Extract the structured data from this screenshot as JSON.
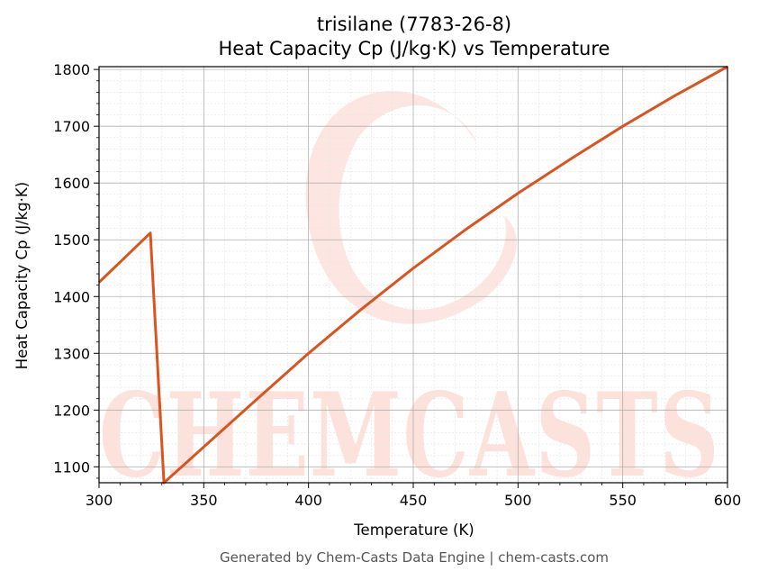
{
  "chart_data": {
    "type": "line",
    "title": "trisilane (7783-26-8)",
    "subtitle": "Heat Capacity Cp (J/kg·K) vs Temperature",
    "xlabel": "Temperature (K)",
    "ylabel": "Heat Capacity Cp (J/kg·K)",
    "xlim": [
      300,
      600
    ],
    "ylim": [
      1072,
      1805
    ],
    "x_ticks": [
      300,
      350,
      400,
      450,
      500,
      550,
      600
    ],
    "y_ticks": [
      1100,
      1200,
      1300,
      1400,
      1500,
      1600,
      1700,
      1800
    ],
    "grid": true,
    "line_color": "#d9541e",
    "series": [
      {
        "name": "",
        "points": [
          [
            300,
            1425
          ],
          [
            324.5,
            1512
          ],
          [
            331,
            1072
          ],
          [
            350,
            1135
          ],
          [
            375,
            1218
          ],
          [
            400,
            1300
          ],
          [
            425,
            1377
          ],
          [
            450,
            1450
          ],
          [
            475,
            1518
          ],
          [
            500,
            1582
          ],
          [
            525,
            1642
          ],
          [
            550,
            1700
          ],
          [
            575,
            1754
          ],
          [
            600,
            1805
          ]
        ]
      }
    ]
  },
  "watermark": {
    "text": "CHEMCASTS",
    "color": "#fde2dc"
  },
  "footer": "Generated by Chem-Casts Data Engine | chem-casts.com"
}
